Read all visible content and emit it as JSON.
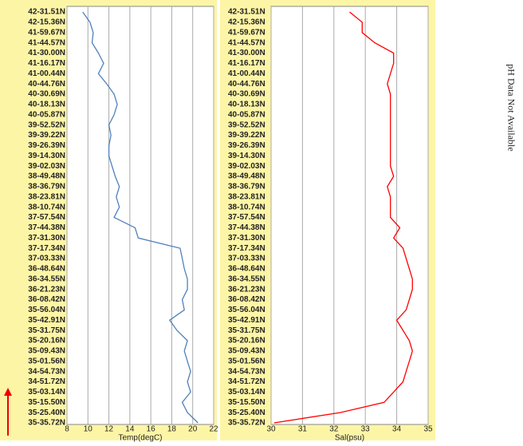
{
  "chart_data": [
    {
      "type": "line",
      "x_label": "Temp(degC)",
      "categories": [
        "42-31.51N",
        "42-15.36N",
        "41-59.67N",
        "41-44.57N",
        "41-30.00N",
        "41-16.17N",
        "41-00.44N",
        "40-44.76N",
        "40-30.69N",
        "40-18.13N",
        "40-05.87N",
        "39-52.52N",
        "39-39.22N",
        "39-26.39N",
        "39-14.30N",
        "39-02.03N",
        "38-49.48N",
        "38-36.79N",
        "38-23.81N",
        "38-10.74N",
        "37-57.54N",
        "37-44.38N",
        "37-31.30N",
        "37-17.34N",
        "37-03.33N",
        "36-48.64N",
        "36-34.55N",
        "36-21.23N",
        "36-08.42N",
        "35-56.04N",
        "35-42.91N",
        "35-31.75N",
        "35-20.16N",
        "35-09.43N",
        "35-01.56N",
        "34-54.73N",
        "34-51.72N",
        "35-03.14N",
        "35-15.50N",
        "35-25.40N",
        "35-35.72N"
      ],
      "series": [
        {
          "color": "#4f81bd",
          "values": [
            9.5,
            10.2,
            10.5,
            10.4,
            11,
            11.5,
            11,
            11.8,
            12.5,
            12.8,
            12.5,
            12,
            12.2,
            12,
            12,
            12.3,
            12.6,
            13,
            12.7,
            13,
            12.5,
            14.5,
            14.8,
            18.8,
            19,
            19.2,
            19.5,
            19.5,
            19,
            19.2,
            17.8,
            18.5,
            19.5,
            19.2,
            19.5,
            19.8,
            19.5,
            19.8,
            19,
            19.5,
            20.5
          ]
        }
      ],
      "xlim": [
        8,
        22
      ],
      "xticks": [
        8,
        10,
        12,
        14,
        16,
        18,
        20,
        22
      ],
      "grid": true
    },
    {
      "type": "line",
      "x_label": "Sal(psu)",
      "categories": [
        "42-31.51N",
        "42-15.36N",
        "41-59.67N",
        "41-44.57N",
        "41-30.00N",
        "41-16.17N",
        "41-00.44N",
        "40-44.76N",
        "40-30.69N",
        "40-18.13N",
        "40-05.87N",
        "39-52.52N",
        "39-39.22N",
        "39-26.39N",
        "39-14.30N",
        "39-02.03N",
        "38-49.48N",
        "38-36.79N",
        "38-23.81N",
        "38-10.74N",
        "37-57.54N",
        "37-44.38N",
        "37-31.30N",
        "37-17.34N",
        "37-03.33N",
        "36-48.64N",
        "36-34.55N",
        "36-21.23N",
        "36-08.42N",
        "35-56.04N",
        "35-42.91N",
        "35-31.75N",
        "35-20.16N",
        "35-09.43N",
        "35-01.56N",
        "34-54.73N",
        "34-51.72N",
        "35-03.14N",
        "35-15.50N",
        "35-25.40N",
        "35-35.72N"
      ],
      "series": [
        {
          "color": "#ff0000",
          "values": [
            32.5,
            32.9,
            32.9,
            33.3,
            33.9,
            33.9,
            33.8,
            33.7,
            33.8,
            33.8,
            33.8,
            33.8,
            33.8,
            33.8,
            33.8,
            33.8,
            33.9,
            33.7,
            33.8,
            33.8,
            33.8,
            34.1,
            33.9,
            34.2,
            34.3,
            34.4,
            34.5,
            34.5,
            34.4,
            34.3,
            34,
            34.2,
            34.4,
            34.5,
            34.4,
            34.3,
            34.2,
            33.9,
            33.6,
            32.2,
            30.1
          ]
        }
      ],
      "xlim": [
        30,
        35
      ],
      "xticks": [
        30,
        31,
        32,
        33,
        34,
        35
      ],
      "grid": true
    }
  ],
  "side_text": "pH Data Not Available"
}
